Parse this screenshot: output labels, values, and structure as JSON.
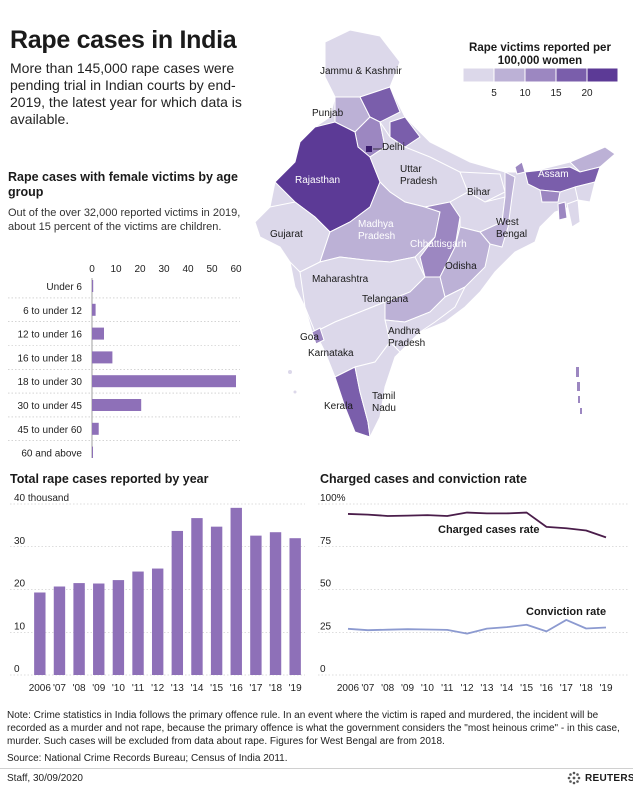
{
  "title": "Rape cases in India",
  "subtitle": "More than 145,000 rape cases were pending trial in Indian courts by end-2019, the latest year for which data is available.",
  "map": {
    "legend_title": "Rape victims reported per 100,000 women",
    "legend_ticks": [
      "5",
      "10",
      "15",
      "20"
    ],
    "legend_colors": [
      "#dcd8ea",
      "#bcb1d6",
      "#9c87c1",
      "#7a5eab",
      "#5c3a96"
    ],
    "state_labels": [
      {
        "name": "Jammu & Kashmir",
        "color": "#1a1a1a"
      },
      {
        "name": "Punjab",
        "color": "#1a1a1a"
      },
      {
        "name": "Delhi",
        "color": "#1a1a1a"
      },
      {
        "name": "Rajasthan",
        "color": "#ffffff"
      },
      {
        "name": "Uttar Pradesh",
        "color": "#1a1a1a"
      },
      {
        "name": "Bihar",
        "color": "#1a1a1a"
      },
      {
        "name": "Assam",
        "color": "#ffffff"
      },
      {
        "name": "Gujarat",
        "color": "#1a1a1a"
      },
      {
        "name": "Madhya Pradesh",
        "color": "#ffffff"
      },
      {
        "name": "Chhattisgarh",
        "color": "#ffffff"
      },
      {
        "name": "West Bengal",
        "color": "#1a1a1a"
      },
      {
        "name": "Odisha",
        "color": "#1a1a1a"
      },
      {
        "name": "Maharashtra",
        "color": "#1a1a1a"
      },
      {
        "name": "Telangana",
        "color": "#1a1a1a"
      },
      {
        "name": "Goa",
        "color": "#1a1a1a"
      },
      {
        "name": "Karnataka",
        "color": "#1a1a1a"
      },
      {
        "name": "Andhra Pradesh",
        "color": "#1a1a1a"
      },
      {
        "name": "Kerala",
        "color": "#1a1a1a"
      },
      {
        "name": "Tamil Nadu",
        "color": "#1a1a1a"
      }
    ]
  },
  "age_chart": {
    "title": "Rape cases with female victims by age group",
    "note": "Out of the over 32,000 reported victims in 2019, about 15 percent of the victims are children."
  },
  "yearly_chart": {
    "title": "Total rape cases reported by year"
  },
  "rate_chart": {
    "title": "Charged cases and conviction rate"
  },
  "chart_data": [
    {
      "type": "bar",
      "orientation": "horizontal",
      "title": "Rape cases with female victims by age group",
      "categories": [
        "Under 6",
        "6 to under 12",
        "12 to under 16",
        "16 to under 18",
        "18 to under 30",
        "30 to under 45",
        "45 to under 60",
        "60 and above"
      ],
      "values": [
        0.5,
        1.5,
        5,
        8.5,
        60,
        20.5,
        2.8,
        0.3
      ],
      "xticks": [
        "0",
        "10",
        "20",
        "30",
        "40",
        "50",
        "60"
      ],
      "xlim": [
        0,
        60
      ],
      "color": "#8e70b8"
    },
    {
      "type": "bar",
      "title": "Total rape cases reported by year",
      "categories": [
        "2006",
        "'07",
        "'08",
        "'09",
        "'10",
        "'11",
        "'12",
        "'13",
        "'14",
        "'15",
        "'16",
        "'17",
        "'18",
        "'19"
      ],
      "values": [
        19.3,
        20.7,
        21.5,
        21.4,
        22.2,
        24.2,
        24.9,
        33.7,
        36.7,
        34.7,
        39.1,
        32.6,
        33.4,
        32.0
      ],
      "yticks": [
        "0",
        "10",
        "20",
        "30",
        "40 thousand"
      ],
      "ylim": [
        0,
        40
      ],
      "color": "#8e70b8"
    },
    {
      "type": "line",
      "title": "Charged cases and conviction rate",
      "categories": [
        "2006",
        "'07",
        "'08",
        "'09",
        "'10",
        "'11",
        "'12",
        "'13",
        "'14",
        "'15",
        "'16",
        "'17",
        "'18",
        "'19"
      ],
      "series": [
        {
          "name": "Charged cases rate",
          "color": "#4a1d4a",
          "values": [
            94.2,
            93.8,
            93.0,
            93.2,
            93.5,
            93.0,
            95.0,
            94.5,
            94.5,
            95.0,
            86.6,
            85.8,
            84.5,
            80.5
          ]
        },
        {
          "name": "Conviction rate",
          "color": "#8c9ad0",
          "values": [
            27.0,
            26.2,
            26.5,
            26.8,
            26.6,
            26.4,
            24.2,
            27.1,
            28.0,
            29.4,
            25.5,
            32.2,
            27.2,
            27.8
          ]
        }
      ],
      "yticks": [
        "0",
        "25",
        "50",
        "75",
        "100%"
      ],
      "ylim": [
        0,
        100
      ]
    }
  ],
  "note": "Note: Crime statistics in India follows the primary offence rule. In an event where the victim is raped and murdered, the incident will be recorded as a murder and not rape, because the primary offence is what the government considers the \"most heinous crime\" - in this case, murder. Such cases will be excluded from data about rape. Figures for West Bengal are from 2018.",
  "source": "Source: National Crime Records Bureau; Census of India 2011.",
  "credit": "Staff,  30/09/2020",
  "brand": "REUTERS"
}
